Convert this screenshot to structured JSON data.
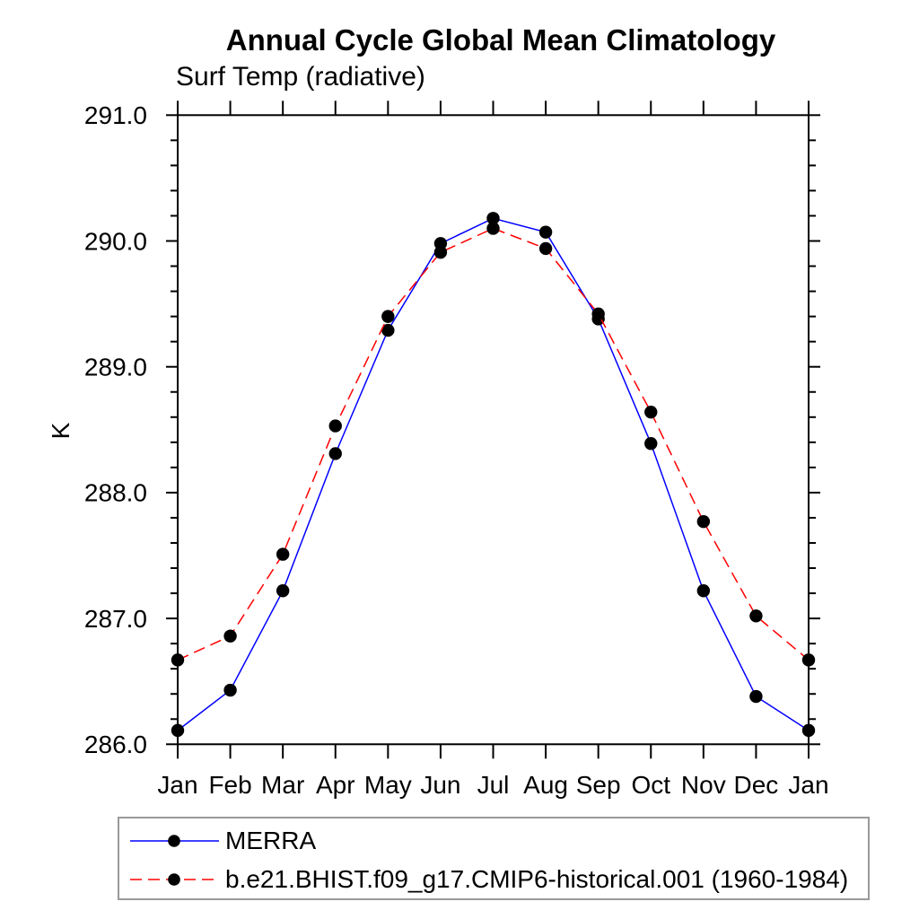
{
  "title": "Annual Cycle Global Mean Climatology",
  "subtitle": "Surf Temp (radiative)",
  "ylabel": "K",
  "colors": {
    "axis": "#000000",
    "marker": "#000000",
    "merra_line": "#0000ff",
    "model_line": "#ff0000",
    "legend_border": "#999999",
    "background": "#ffffff"
  },
  "legend": {
    "items": [
      {
        "label": "MERRA",
        "style": "solid",
        "color": "#0000ff"
      },
      {
        "label": "b.e21.BHIST.f09_g17.CMIP6-historical.001 (1960-1984)",
        "style": "dashed",
        "color": "#ff0000"
      }
    ]
  },
  "chart_data": {
    "type": "line",
    "title": "Annual Cycle Global Mean Climatology",
    "subtitle": "Surf Temp (radiative)",
    "xlabel": "",
    "ylabel": "K",
    "x_categories": [
      "Jan",
      "Feb",
      "Mar",
      "Apr",
      "May",
      "Jun",
      "Jul",
      "Aug",
      "Sep",
      "Oct",
      "Nov",
      "Dec",
      "Jan"
    ],
    "ylim": [
      286.0,
      291.0
    ],
    "y_major_ticks": [
      286.0,
      287.0,
      288.0,
      289.0,
      290.0,
      291.0
    ],
    "y_tick_labels": [
      "286.0",
      "287.0",
      "288.0",
      "289.0",
      "290.0",
      "291.0"
    ],
    "y_minor_step": 0.2,
    "grid": false,
    "legend_position": "bottom-left-box",
    "series": [
      {
        "name": "MERRA",
        "style": "solid",
        "color": "#0000ff",
        "marker": "circle",
        "marker_color": "#000000",
        "values": [
          286.11,
          286.43,
          287.22,
          288.31,
          289.29,
          289.98,
          290.18,
          290.07,
          289.38,
          288.39,
          287.22,
          286.38,
          286.11
        ]
      },
      {
        "name": "b.e21.BHIST.f09_g17.CMIP6-historical.001 (1960-1984)",
        "style": "dashed",
        "color": "#ff0000",
        "marker": "circle",
        "marker_color": "#000000",
        "values": [
          286.67,
          286.86,
          287.51,
          288.53,
          289.4,
          289.91,
          290.1,
          289.94,
          289.42,
          288.64,
          287.77,
          287.02,
          286.67
        ]
      }
    ]
  }
}
